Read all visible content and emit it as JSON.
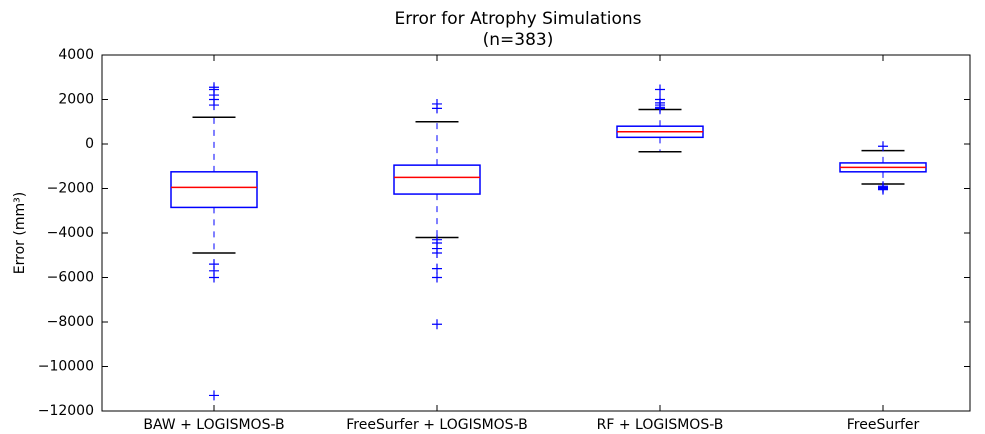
{
  "chart_data": {
    "type": "box",
    "title": "Error for Atrophy Simulations",
    "subtitle": "(n=383)",
    "y_label": "Error (mm³)",
    "categories": [
      "BAW + LOGISMOS-B",
      "FreeSurfer + LOGISMOS-B",
      "RF + LOGISMOS-B",
      "FreeSurfer"
    ],
    "boxes": [
      {
        "whislo": -4900,
        "q1": -2850,
        "med": -1950,
        "q3": -1250,
        "whishi": 1200,
        "fliers": [
          2550,
          2450,
          2200,
          2000,
          1750,
          -5400,
          -5700,
          -6000,
          -11300
        ]
      },
      {
        "whislo": -4200,
        "q1": -2250,
        "med": -1500,
        "q3": -950,
        "whishi": 1000,
        "fliers": [
          1800,
          1600,
          -4300,
          -4450,
          -4700,
          -4900,
          -5600,
          -6000,
          -8100
        ]
      },
      {
        "whislo": -350,
        "q1": 300,
        "med": 550,
        "q3": 800,
        "whishi": 1550,
        "fliers": [
          2450,
          2000,
          1850,
          1750,
          1650,
          1600
        ]
      },
      {
        "whislo": -1800,
        "q1": -1250,
        "med": -1050,
        "q3": -850,
        "whishi": -300,
        "fliers": [
          -100,
          -1900,
          -1950,
          -2000,
          -2050
        ]
      }
    ],
    "box_color": "#0000ff",
    "median_color": "#ff0000",
    "cap_color": "#000000",
    "ylim": [
      -12000,
      4000
    ],
    "yticks": [
      {
        "value": -12000,
        "label": "−12000"
      },
      {
        "value": -10000,
        "label": "−10000"
      },
      {
        "value": -8000,
        "label": "−8000"
      },
      {
        "value": -6000,
        "label": "−6000"
      },
      {
        "value": -4000,
        "label": "−4000"
      },
      {
        "value": -2000,
        "label": "−2000"
      },
      0,
      2000,
      4000
    ]
  }
}
